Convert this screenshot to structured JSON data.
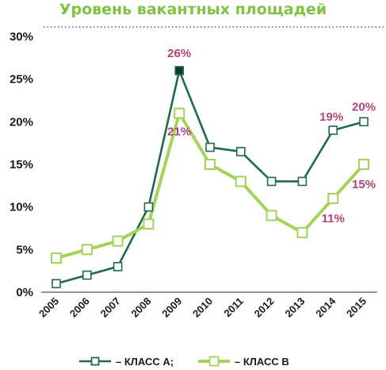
{
  "chart_data": {
    "type": "line",
    "title": "Уровень вакантных площадей",
    "categories": [
      "2005",
      "2006",
      "2007",
      "2008",
      "2009",
      "2010",
      "2011",
      "2012",
      "2013",
      "2014",
      "2015"
    ],
    "y_ticks": [
      "0%",
      "5%",
      "10%",
      "15%",
      "20%",
      "25%",
      "30%"
    ],
    "ylim": [
      0,
      30
    ],
    "grid": false,
    "legend_position": "bottom",
    "series": [
      {
        "name": "КЛАСС А;",
        "values": [
          1,
          2,
          3,
          10,
          26,
          17,
          16.5,
          13,
          13,
          19,
          20
        ],
        "color": "#1e6b4a"
      },
      {
        "name": "КЛАСС В",
        "values": [
          4,
          5,
          6,
          8,
          21,
          15,
          13,
          9,
          7,
          11,
          15
        ],
        "color": "#a3d35a"
      }
    ],
    "legend_dash": "–",
    "data_labels": [
      {
        "series": 0,
        "index": 4,
        "text": "26%"
      },
      {
        "series": 1,
        "index": 4,
        "text": "21%"
      },
      {
        "series": 0,
        "index": 9,
        "text": "19%"
      },
      {
        "series": 0,
        "index": 10,
        "text": "20%"
      },
      {
        "series": 1,
        "index": 9,
        "text": "11%"
      },
      {
        "series": 1,
        "index": 10,
        "text": "15%"
      }
    ],
    "colors": {
      "title": "#7fc241",
      "data_label": "#b0447a",
      "axis": "#555555",
      "dotted_rule": "#2f7a58"
    }
  }
}
